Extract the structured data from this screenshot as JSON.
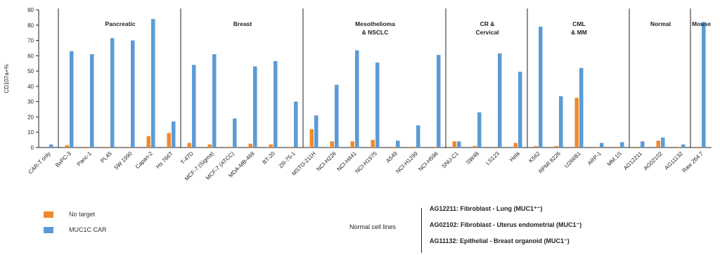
{
  "chart_data": {
    "type": "bar",
    "ylabel": "CD107a+%",
    "ylim": [
      0,
      90
    ],
    "yticks": [
      0,
      10,
      20,
      30,
      40,
      50,
      60,
      70,
      80,
      90
    ],
    "categories": [
      "CAR-T only",
      "BxPC-3",
      "Panc-1",
      "PL45",
      "SW 1990",
      "Capan-2",
      "Hs 766T",
      "T-47D",
      "MCF-7 (Sigma)",
      "MCF-7 (ATCC)",
      "MDA-MB-468",
      "BT-20",
      "ZR-75-1",
      "MSTO-211H",
      "NCI-H226",
      "NCI-H441",
      "NCI-H1975",
      "A549",
      "NCI-H1299",
      "NCI-H596",
      "SNU-C1",
      "SW48",
      "LS123",
      "Hela",
      "K562",
      "RPMI 8226",
      "U266B1",
      "ARP-1",
      "MM.1S",
      "AG12211",
      "AG02102",
      "AG11132",
      "Raw 264.7"
    ],
    "series": [
      {
        "name": "No target",
        "color": "#ee8a2e",
        "values": [
          0,
          1.5,
          0.5,
          0.5,
          0.5,
          7.5,
          9.5,
          3,
          2,
          0.5,
          2.5,
          2,
          0.5,
          12,
          4,
          4,
          5,
          0.5,
          0.5,
          0.5,
          4,
          1,
          0.5,
          3,
          1,
          1,
          32.5,
          0.5,
          0.5,
          0.5,
          4.5,
          0.5,
          0.5
        ]
      },
      {
        "name": "MUC1C CAR",
        "color": "#5b9bd5",
        "values": [
          2,
          63,
          61,
          71.5,
          70,
          84,
          17,
          54,
          61,
          19,
          53,
          56.5,
          30,
          21,
          41,
          63.5,
          55.5,
          4.5,
          14.5,
          60.5,
          4,
          23,
          61.5,
          49.5,
          79,
          33.5,
          52,
          3,
          3.5,
          4,
          6.5,
          2,
          82
        ]
      }
    ],
    "groups": [
      {
        "label": "Pancreatic",
        "start": 1,
        "end": 6
      },
      {
        "label": "Breast",
        "start": 7,
        "end": 12
      },
      {
        "label": "Mesothelioma & NSCLC",
        "start": 13,
        "end": 19
      },
      {
        "label": "CR & Cervical",
        "start": 20,
        "end": 23
      },
      {
        "label": "CML & MM",
        "start": 24,
        "end": 28
      },
      {
        "label": "Normal",
        "start": 29,
        "end": 31
      },
      {
        "label": "Mouse",
        "start": 32,
        "end": 32
      }
    ]
  },
  "legend": {
    "items": [
      {
        "label": "No target",
        "color": "#ee8a2e"
      },
      {
        "label": "MUC1C CAR",
        "color": "#5b9bd5"
      }
    ]
  },
  "notes": {
    "label": "Normal cell lines",
    "lines": [
      "AG12211: Fibroblast - Lung (MUC1⁺⁻)",
      "AG02102: Fibroblast - Uterus endometrial (MUC1⁻)",
      "AG11132: Epithelial - Breast organoid (MUC1⁻)"
    ]
  }
}
